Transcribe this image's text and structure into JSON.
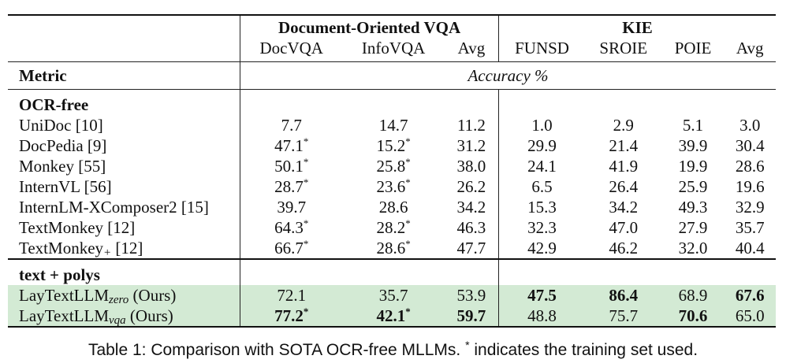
{
  "header": {
    "group_doc": "Document-Oriented VQA",
    "group_kie": "KIE",
    "columns": [
      "DocVQA",
      "InfoVQA",
      "Avg",
      "FUNSD",
      "SROIE",
      "POIE",
      "Avg"
    ]
  },
  "metric": {
    "label": "Metric",
    "value": "Accuracy %"
  },
  "sections": [
    {
      "title": "OCR-free",
      "rows": [
        {
          "name": "UniDoc [10]",
          "values": [
            "7.7",
            "14.7",
            "11.2",
            "1.0",
            "2.9",
            "5.1",
            "3.0"
          ],
          "starred": [
            false,
            false,
            false,
            false,
            false,
            false,
            false
          ]
        },
        {
          "name": "DocPedia [9]",
          "values": [
            "47.1",
            "15.2",
            "31.2",
            "29.9",
            "21.4",
            "39.9",
            "30.4"
          ],
          "starred": [
            true,
            true,
            false,
            false,
            false,
            false,
            false
          ]
        },
        {
          "name": "Monkey [55]",
          "values": [
            "50.1",
            "25.8",
            "38.0",
            "24.1",
            "41.9",
            "19.9",
            "28.6"
          ],
          "starred": [
            true,
            true,
            false,
            false,
            false,
            false,
            false
          ]
        },
        {
          "name": "InternVL [56]",
          "values": [
            "28.7",
            "23.6",
            "26.2",
            "6.5",
            "26.4",
            "25.9",
            "19.6"
          ],
          "starred": [
            true,
            true,
            false,
            false,
            false,
            false,
            false
          ]
        },
        {
          "name": "InternLM-XComposer2 [15]",
          "values": [
            "39.7",
            "28.6",
            "34.2",
            "15.3",
            "34.2",
            "49.3",
            "32.9"
          ],
          "starred": [
            false,
            false,
            false,
            false,
            false,
            false,
            false
          ]
        },
        {
          "name": "TextMonkey [12]",
          "values": [
            "64.3",
            "28.2",
            "46.3",
            "32.3",
            "47.0",
            "27.9",
            "35.7"
          ],
          "starred": [
            true,
            true,
            false,
            false,
            false,
            false,
            false
          ]
        },
        {
          "name": "TextMonkey",
          "subscript": "+",
          "ref": "[12]",
          "values": [
            "66.7",
            "28.6",
            "47.7",
            "42.9",
            "46.2",
            "32.0",
            "40.4"
          ],
          "starred": [
            true,
            true,
            false,
            false,
            false,
            false,
            false
          ]
        }
      ]
    },
    {
      "title": "text + polys",
      "rows": [
        {
          "name": "LayTextLLM",
          "subscript": "zero",
          "suffix": "(Ours)",
          "highlight": true,
          "values": [
            "72.1",
            "35.7",
            "53.9",
            "47.5",
            "86.4",
            "68.9",
            "67.6"
          ],
          "starred": [
            false,
            false,
            false,
            false,
            false,
            false,
            false
          ],
          "bold": [
            false,
            false,
            false,
            true,
            true,
            false,
            true
          ]
        },
        {
          "name": "LayTextLLM",
          "subscript": "vqa",
          "suffix": "(Ours)",
          "highlight": true,
          "values": [
            "77.2",
            "42.1",
            "59.7",
            "48.8",
            "75.7",
            "70.6",
            "65.0"
          ],
          "starred": [
            true,
            true,
            false,
            false,
            false,
            false,
            false
          ],
          "bold": [
            true,
            true,
            true,
            false,
            false,
            true,
            false
          ]
        }
      ]
    }
  ],
  "caption": {
    "prefix": "Table 1: Comparison with SOTA OCR-free MLLMs.",
    "star": "*",
    "suffix": "indicates the training set used."
  }
}
